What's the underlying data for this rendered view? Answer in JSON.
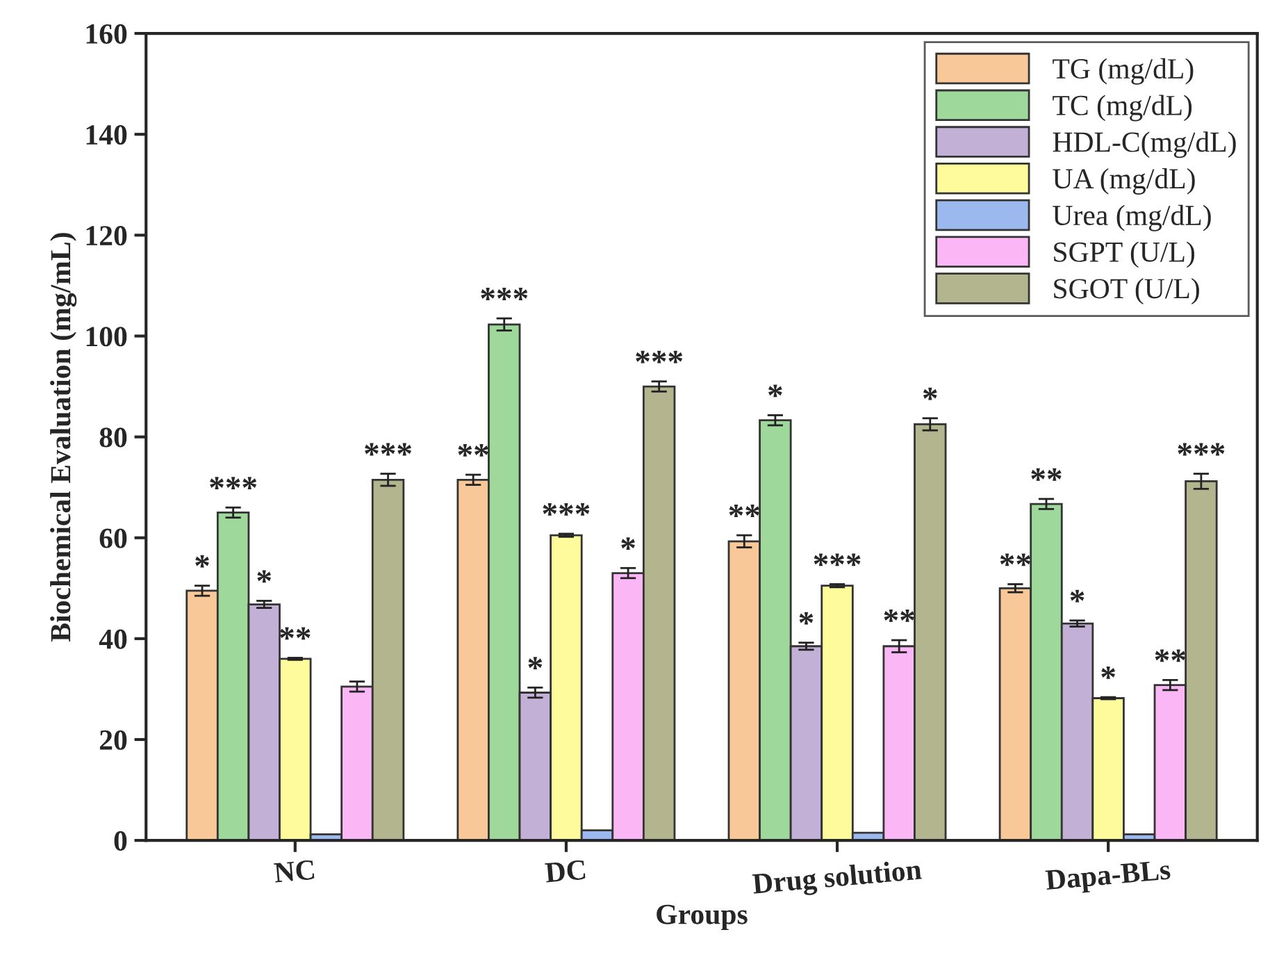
{
  "chart_data": {
    "type": "bar",
    "xlabel": "Groups",
    "ylabel": "Biochemical Evaluation (mg/mL)",
    "categories": [
      "NC",
      "DC",
      "Drug solution",
      "Dapa-BLs"
    ],
    "ylim": [
      0,
      160
    ],
    "yticks": [
      0,
      20,
      40,
      60,
      80,
      100,
      120,
      140,
      160
    ],
    "grid": false,
    "legend": "top right",
    "series": [
      {
        "name": "TG (mg/dL)",
        "color": "#f9c898",
        "values": [
          49.5,
          71.5,
          59.3,
          50
        ],
        "errors": [
          1,
          1,
          1.2,
          0.8
        ],
        "value_labels": [
          "*",
          "**",
          "**",
          "**"
        ]
      },
      {
        "name": "TC (mg/dL)",
        "color": "#9fd89b",
        "values": [
          65,
          102.3,
          83.3,
          66.7
        ],
        "errors": [
          1,
          1.2,
          1,
          1
        ],
        "value_labels": [
          "***",
          "***",
          "*",
          "**"
        ]
      },
      {
        "name": "HDL-C(mg/dL)",
        "color": "#c3b0d6",
        "values": [
          46.8,
          29.3,
          38.5,
          43
        ],
        "errors": [
          0.7,
          1,
          0.7,
          0.6
        ],
        "value_labels": [
          "*",
          "*",
          "*",
          "*"
        ]
      },
      {
        "name": "UA (mg/dL)",
        "color": "#fdfb9b",
        "values": [
          36,
          60.5,
          50.5,
          28.2
        ],
        "errors": [
          0.2,
          0.3,
          0.3,
          0.2
        ],
        "value_labels": [
          "**",
          "***",
          "***",
          "*"
        ]
      },
      {
        "name": "Urea (mg/dL)",
        "color": "#9bb9ef",
        "values": [
          1.2,
          2,
          1.5,
          1.2
        ],
        "errors": [
          null,
          null,
          null,
          null
        ],
        "value_labels": [
          null,
          null,
          null,
          null
        ]
      },
      {
        "name": "SGPT (U/L)",
        "color": "#fbb7f5",
        "values": [
          30.5,
          53,
          38.5,
          30.8
        ],
        "errors": [
          1,
          1,
          1.2,
          1
        ],
        "value_labels": [
          null,
          "*",
          "**",
          "**"
        ]
      },
      {
        "name": "SGOT (U/L)",
        "color": "#b3b58f",
        "values": [
          71.5,
          90,
          82.5,
          71.2
        ],
        "errors": [
          1.2,
          1,
          1.2,
          1.5
        ],
        "value_labels": [
          "***",
          "***",
          "*",
          "***"
        ]
      }
    ]
  }
}
